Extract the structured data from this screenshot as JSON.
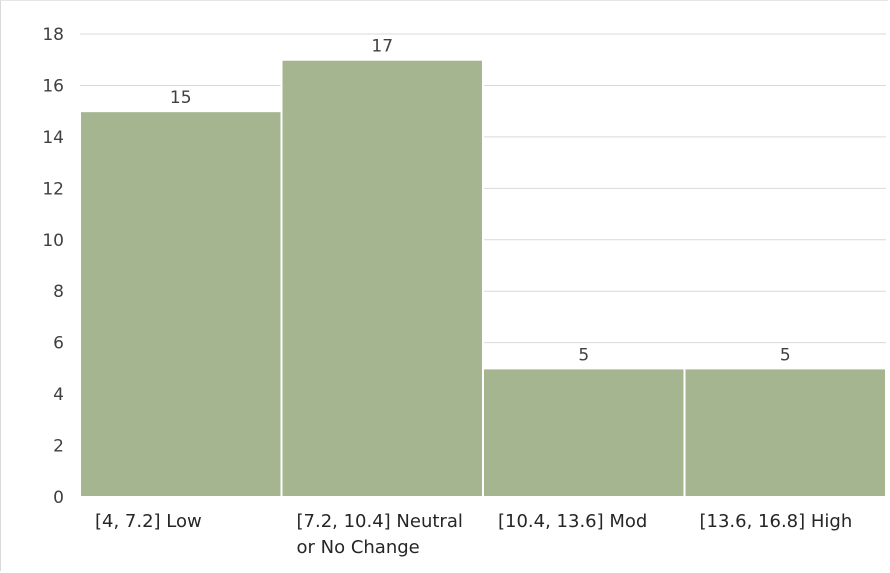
{
  "chart_data": {
    "type": "bar",
    "categories": [
      [
        "[4, 7.2] Low"
      ],
      [
        "[7.2, 10.4] Neutral",
        "or No Change"
      ],
      [
        "[10.4, 13.6] Mod"
      ],
      [
        "[13.6, 16.8] High"
      ]
    ],
    "values": [
      15,
      17,
      5,
      5
    ],
    "data_labels": [
      "15",
      "17",
      "5",
      "5"
    ],
    "ylim": [
      0,
      18
    ],
    "yticks": [
      0,
      2,
      4,
      6,
      8,
      10,
      12,
      14,
      16,
      18
    ],
    "ytick_labels": [
      "0",
      "2",
      "4",
      "6",
      "8",
      "10",
      "12",
      "14",
      "16",
      "18"
    ],
    "title": "",
    "xlabel": "",
    "ylabel": "",
    "grid": true,
    "legend": "none",
    "bar_color": "#a5b590",
    "grid_color": "#d9d9d9"
  }
}
